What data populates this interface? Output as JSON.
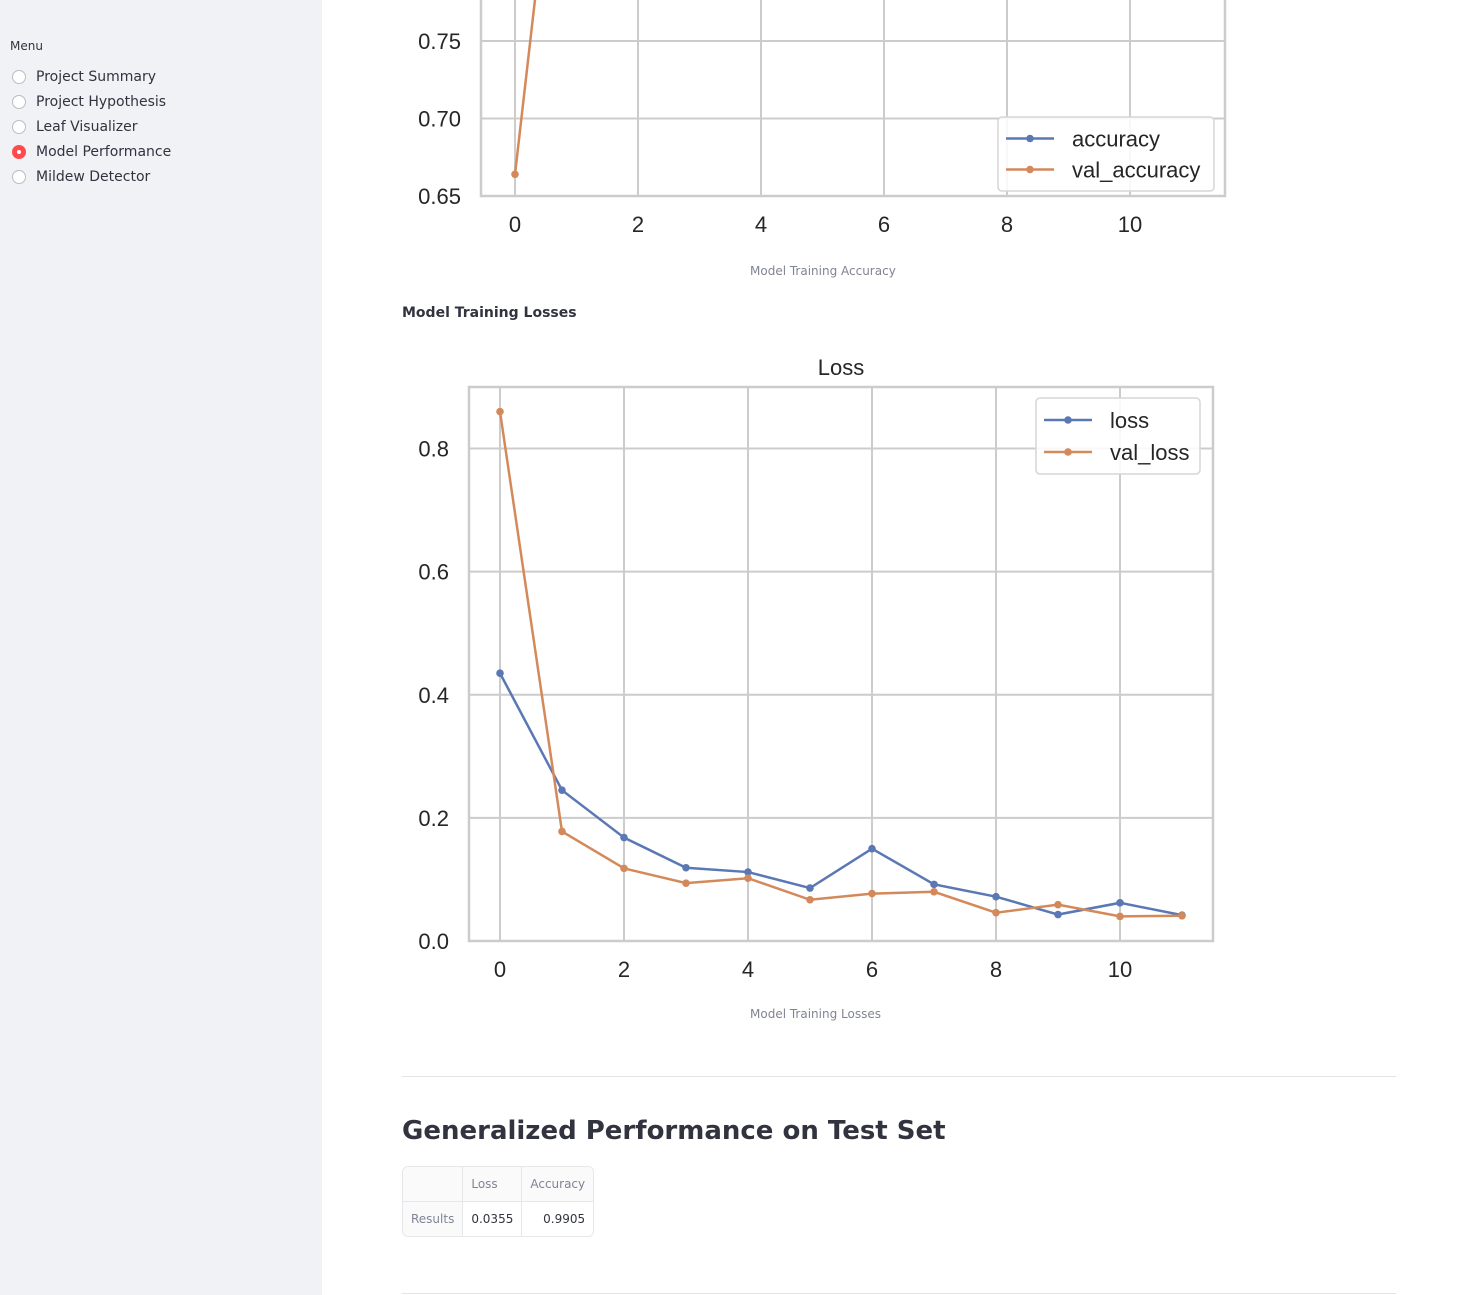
{
  "sidebar": {
    "menu_label": "Menu",
    "items": [
      {
        "label": "Project Summary",
        "selected": false
      },
      {
        "label": "Project Hypothesis",
        "selected": false
      },
      {
        "label": "Leaf Visualizer",
        "selected": false
      },
      {
        "label": "Model Performance",
        "selected": true
      },
      {
        "label": "Mildew Detector",
        "selected": false
      }
    ],
    "accent_color": "#ff4b4b"
  },
  "main": {
    "accuracy_caption": "Model Training Accuracy",
    "losses_subheading": "Model Training Losses",
    "losses_caption": "Model Training Losses",
    "test_title": "Generalized Performance on Test Set",
    "results_table": {
      "headers": [
        "",
        "Loss",
        "Accuracy"
      ],
      "rows": [
        [
          "Results",
          "0.0355",
          "0.9905"
        ]
      ]
    }
  },
  "chart_data": [
    {
      "type": "line",
      "title": "",
      "xlabel": "",
      "ylabel": "",
      "x_ticks": [
        "0",
        "2",
        "4",
        "6",
        "8",
        "10"
      ],
      "y_ticks": [
        "0.65",
        "0.70",
        "0.75"
      ],
      "ylim_visible": [
        0.65,
        0.77
      ],
      "grid": true,
      "legend_position": "bottom-right",
      "series": [
        {
          "name": "accuracy",
          "color": "#5a78b4",
          "x": [],
          "y": []
        },
        {
          "name": "val_accuracy",
          "color": "#d4895b",
          "x": [
            0
          ],
          "y": [
            0.664
          ]
        }
      ],
      "note_visible": "chart cropped at top; val_accuracy rises steeply past 0.77 between epoch 0 and 1"
    },
    {
      "type": "line",
      "title": "Loss",
      "xlabel": "",
      "ylabel": "",
      "x_ticks": [
        "0",
        "2",
        "4",
        "6",
        "8",
        "10"
      ],
      "y_ticks": [
        "0.0",
        "0.2",
        "0.4",
        "0.6",
        "0.8"
      ],
      "xlim": [
        -0.5,
        11.5
      ],
      "ylim": [
        0,
        0.9
      ],
      "grid": true,
      "legend_position": "top-right",
      "series": [
        {
          "name": "loss",
          "color": "#5a78b4",
          "x": [
            0,
            1,
            2,
            3,
            4,
            5,
            6,
            7,
            8,
            9,
            10,
            11
          ],
          "y": [
            0.435,
            0.245,
            0.168,
            0.119,
            0.112,
            0.086,
            0.15,
            0.092,
            0.072,
            0.043,
            0.062,
            0.042
          ]
        },
        {
          "name": "val_loss",
          "color": "#d4895b",
          "x": [
            0,
            1,
            2,
            3,
            4,
            5,
            6,
            7,
            8,
            9,
            10,
            11
          ],
          "y": [
            0.86,
            0.178,
            0.118,
            0.094,
            0.102,
            0.067,
            0.077,
            0.08,
            0.046,
            0.059,
            0.04,
            0.041
          ]
        }
      ]
    }
  ]
}
